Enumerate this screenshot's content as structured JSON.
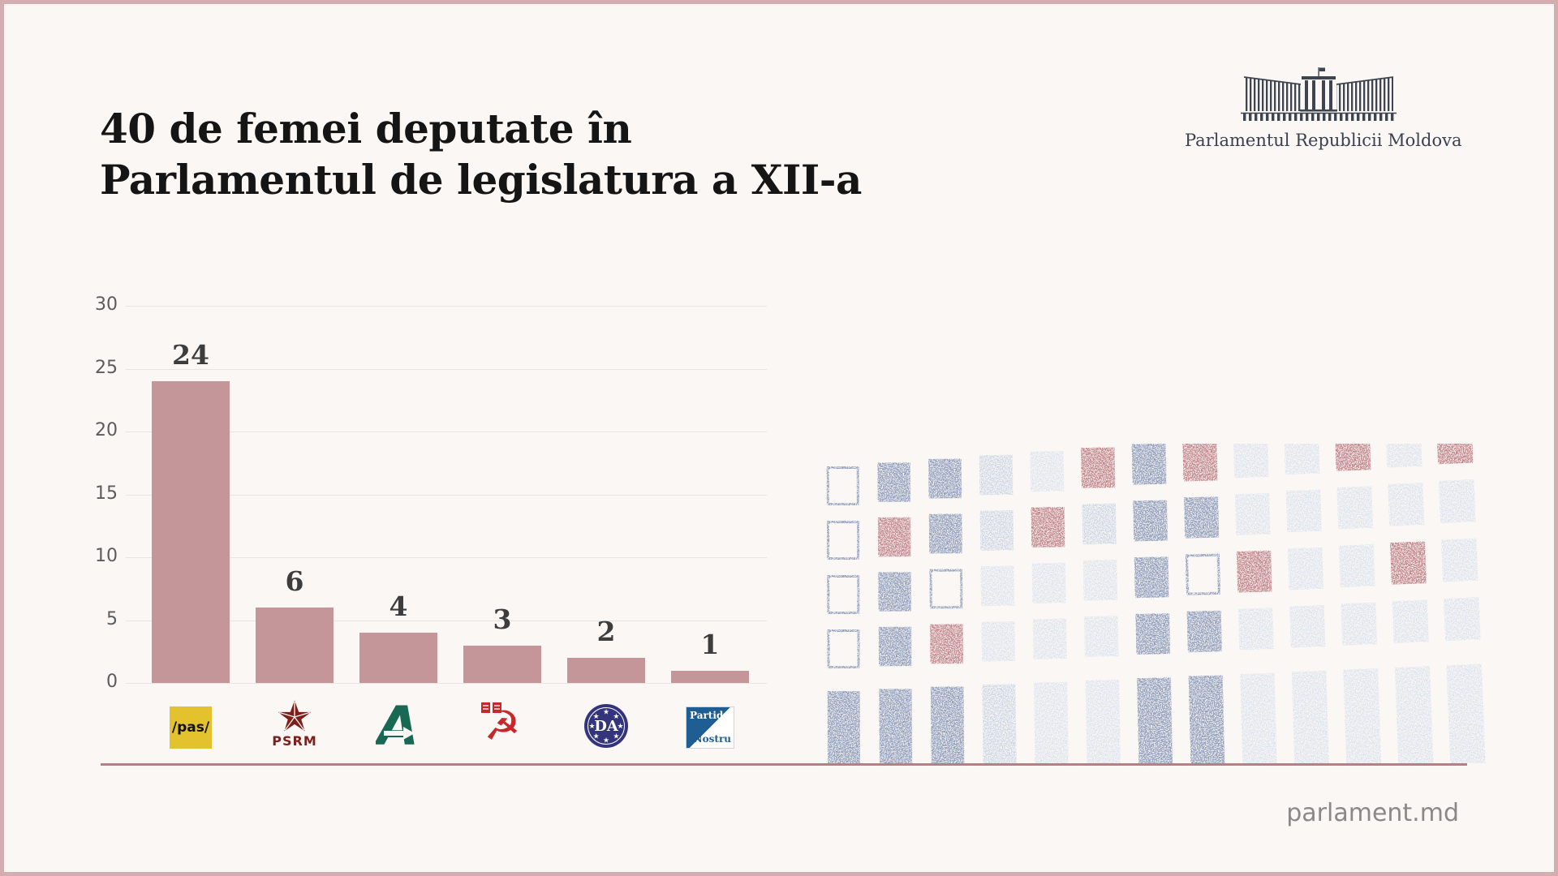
{
  "page": {
    "title_line1": "40 de femei deputate în",
    "title_line2": "Parlamentul de legislatura a XII-a",
    "footer": "parlament.md",
    "background": "#faf7f4",
    "frame_color": "#d4adb1",
    "separator_color": "#b57f86",
    "header_logo": {
      "caption": "Parlamentul Republicii Moldova",
      "building_icon": "parliament-building-icon",
      "color": "#3e4450"
    }
  },
  "chart_data": {
    "type": "bar",
    "title": "40 de femei deputate în Parlamentul de legislatura a XII-a",
    "categories": [
      "PAS",
      "PSRM",
      "Partidul Alternativa",
      "PCRM",
      "Platforma DA",
      "Partidul Nostru"
    ],
    "values": [
      24,
      6,
      4,
      3,
      2,
      1
    ],
    "ylim": [
      0,
      30
    ],
    "yticks": [
      0,
      5,
      10,
      15,
      20,
      25,
      30
    ],
    "grid": true,
    "legend": false,
    "xlabel": "",
    "ylabel": "",
    "bar_color": "#c49599",
    "value_label_color": "#3d3d3d",
    "tick_color": "#5c5c5c"
  },
  "party_logos": [
    {
      "id": "pas",
      "text": "/pas/",
      "bg": "#e3c22d",
      "fg": "#111111"
    },
    {
      "id": "psrm",
      "text": "PSRM",
      "color": "#7d1f1a"
    },
    {
      "id": "alternativa",
      "letter": "A",
      "color": "#176953"
    },
    {
      "id": "pcrm",
      "symbol": "hammer-and-sickle",
      "color": "#c5292c"
    },
    {
      "id": "platforma-da",
      "text": "DA",
      "color": "#34347c"
    },
    {
      "id": "partidul-nostru",
      "text_top": "Partidul",
      "text_bottom": "Nostru",
      "color": "#1f5e93"
    }
  ],
  "pattern": {
    "colors": {
      "mblue": "#8e9cbb",
      "pale": "#c6d1e3",
      "pale2": "#d9e1ee",
      "rose": "#c08288",
      "outline": "#8e9cbb"
    },
    "rows": [
      [
        "outline",
        "mblue",
        "mblue",
        "pale",
        "pale2",
        "rose",
        "mblue",
        "rose",
        "pale2",
        "pale2",
        "rose",
        "pale2",
        "rose"
      ],
      [
        "outline",
        "rose",
        "mblue",
        "pale",
        "rose",
        "pale",
        "mblue",
        "mblue",
        "pale2",
        "pale2",
        "pale2",
        "pale2",
        "pale2"
      ],
      [
        "outline",
        "mblue",
        "outline",
        "pale2",
        "pale2",
        "pale2",
        "mblue",
        "outline",
        "rose",
        "pale2",
        "pale2",
        "rose",
        "pale2"
      ],
      [
        "outline",
        "mblue",
        "rose",
        "pale2",
        "pale2",
        "pale2",
        "mblue",
        "mblue",
        "pale2",
        "pale2",
        "pale2",
        "pale2",
        "pale2"
      ],
      [
        "mblue",
        "mblue",
        "mblue",
        "pale",
        "pale2",
        "pale2",
        "mblue",
        "mblue",
        "pale2",
        "pale2",
        "pale2",
        "pale2",
        "pale2"
      ]
    ]
  }
}
